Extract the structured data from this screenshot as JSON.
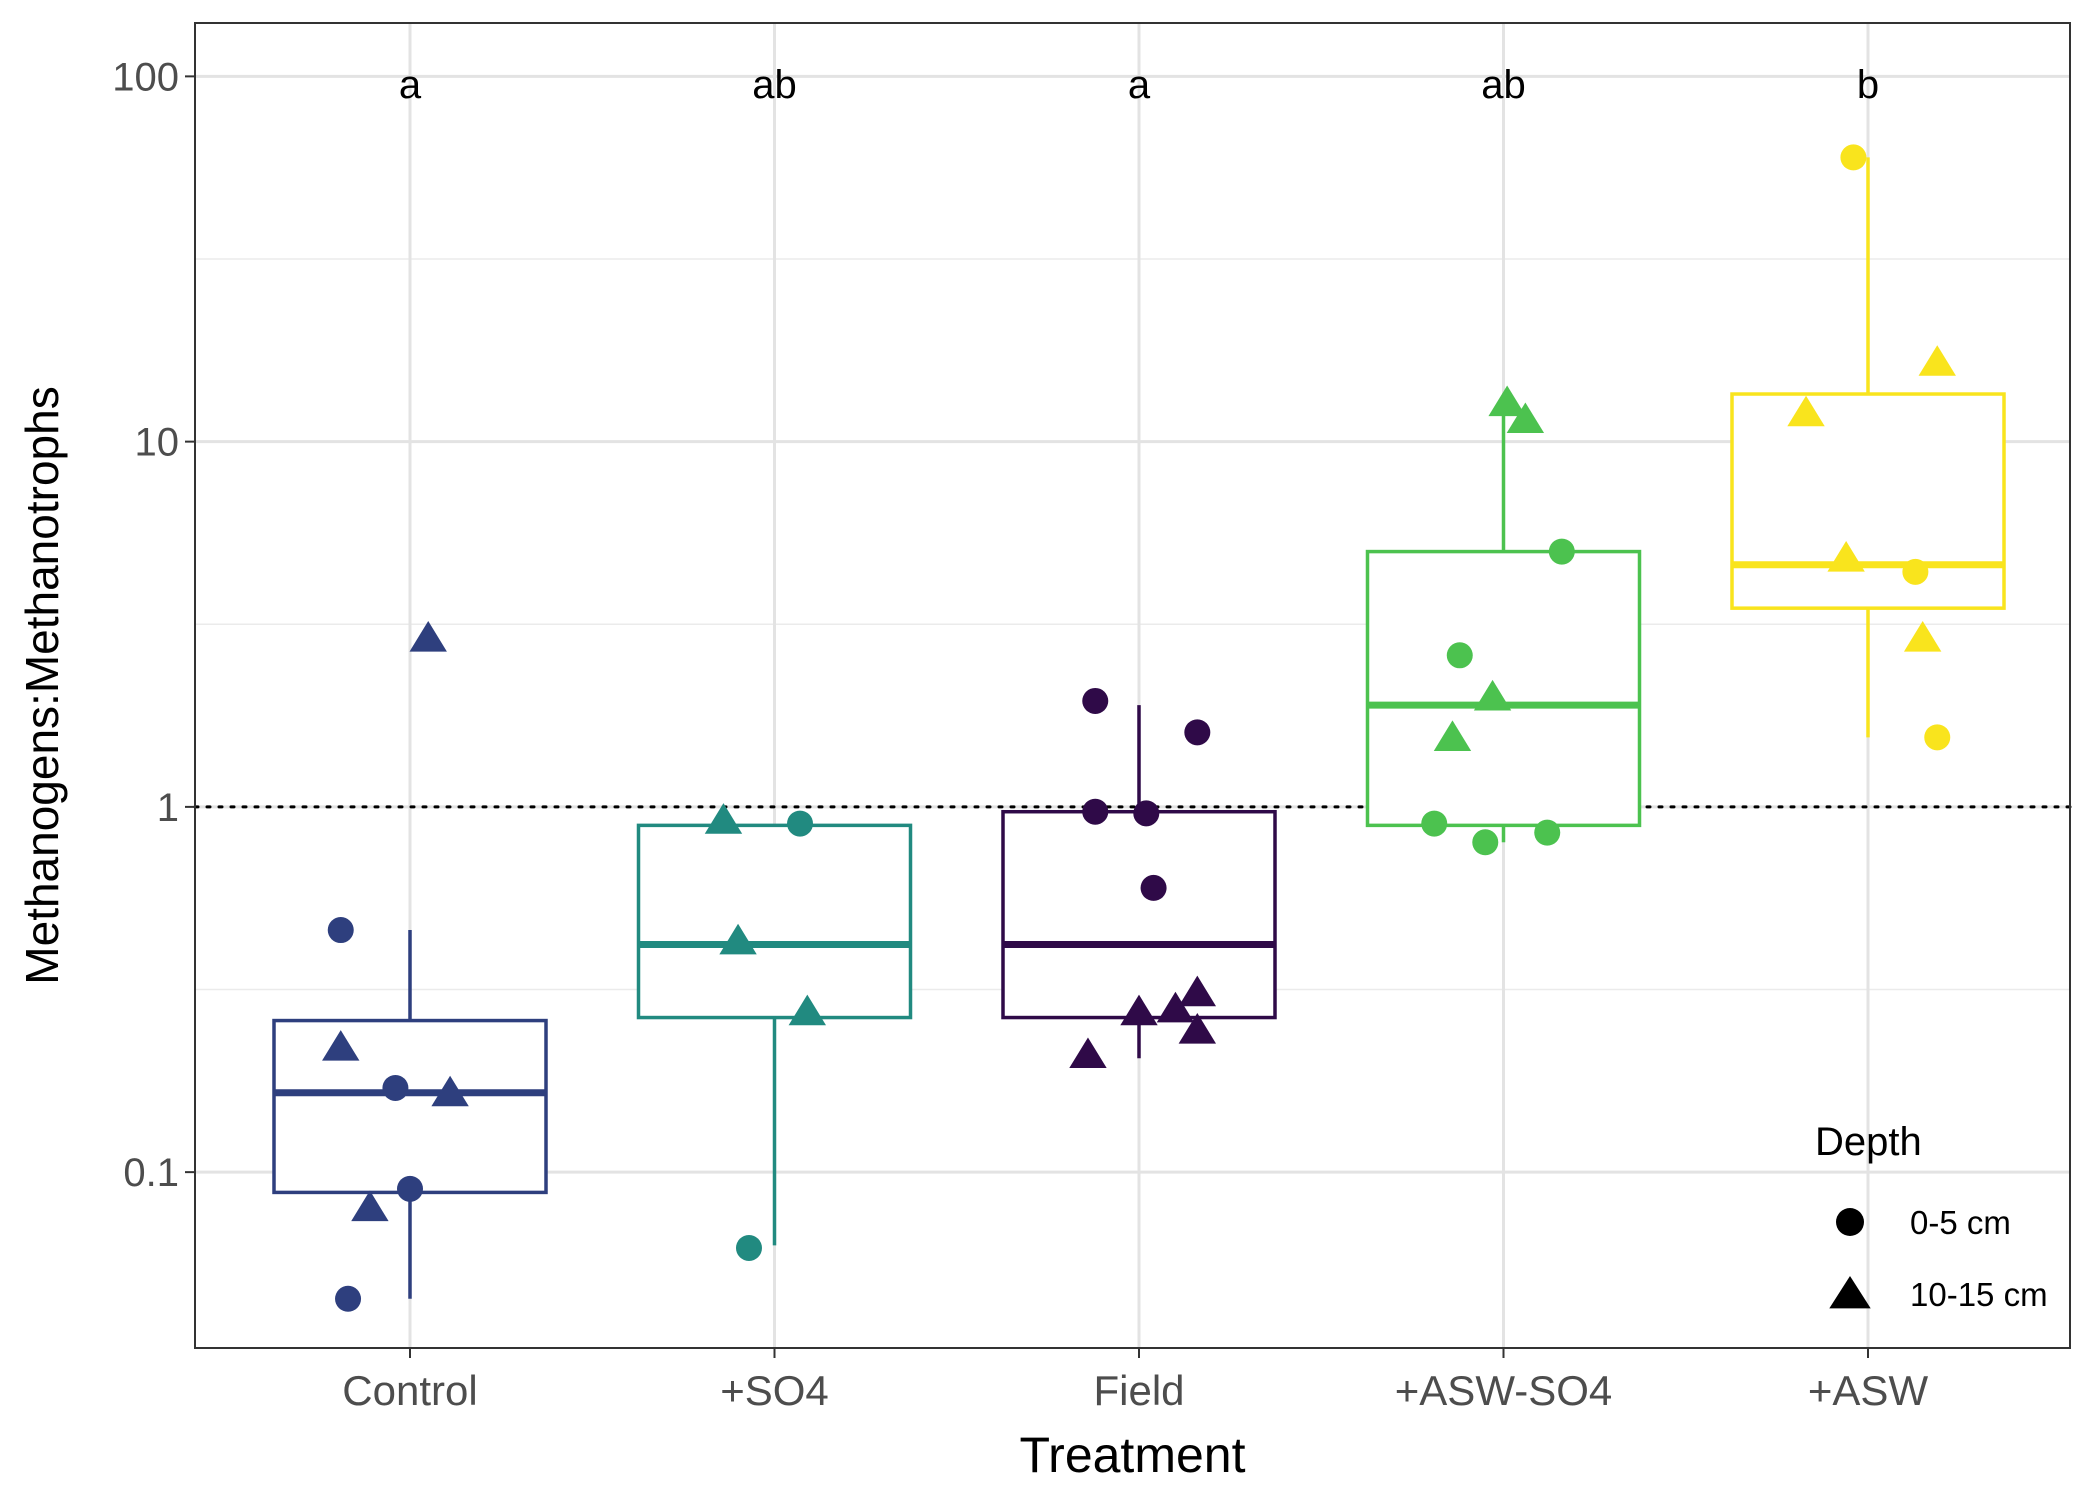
{
  "chart_data": {
    "type": "box",
    "xlabel": "Treatment",
    "ylabel": "Methanogens:Methanotrophs",
    "y_scale": "log10",
    "ylim": [
      0.033,
      140
    ],
    "y_ticks": [
      {
        "value": 0.1,
        "label": "0.1"
      },
      {
        "value": 1,
        "label": "1"
      },
      {
        "value": 10,
        "label": "10"
      },
      {
        "value": 100,
        "label": "100"
      }
    ],
    "reference_line": {
      "y": 1,
      "style": "dotted"
    },
    "grid": true,
    "legend": {
      "title": "Depth",
      "placement": "bottom-right",
      "entries": [
        {
          "label": "0-5 cm",
          "shape": "circle"
        },
        {
          "label": "10-15 cm",
          "shape": "triangle"
        }
      ]
    },
    "groups": [
      {
        "category": "Control",
        "color": "#2e3f7e",
        "letter": "a",
        "box": {
          "q1": 0.088,
          "median": 0.165,
          "q3": 0.26,
          "whisker_low": 0.045,
          "whisker_high": 0.46
        },
        "points": [
          {
            "dx": -0.19,
            "y": 0.46,
            "shape": "circle"
          },
          {
            "dx": -0.17,
            "y": 0.045,
            "shape": "circle"
          },
          {
            "dx": -0.04,
            "y": 0.17,
            "shape": "circle"
          },
          {
            "dx": 0.0,
            "y": 0.09,
            "shape": "circle"
          },
          {
            "dx": -0.19,
            "y": 0.22,
            "shape": "triangle"
          },
          {
            "dx": -0.11,
            "y": 0.08,
            "shape": "triangle"
          },
          {
            "dx": 0.05,
            "y": 2.9,
            "shape": "triangle"
          },
          {
            "dx": 0.11,
            "y": 0.165,
            "shape": "triangle"
          }
        ]
      },
      {
        "category": "+SO4",
        "color": "#218a80",
        "letter": "ab",
        "box": {
          "q1": 0.265,
          "median": 0.42,
          "q3": 0.89,
          "whisker_low": 0.063,
          "whisker_high": 0.89
        },
        "points": [
          {
            "dx": 0.07,
            "y": 0.9,
            "shape": "circle"
          },
          {
            "dx": -0.07,
            "y": 0.062,
            "shape": "circle"
          },
          {
            "dx": -0.14,
            "y": 0.92,
            "shape": "triangle"
          },
          {
            "dx": -0.1,
            "y": 0.43,
            "shape": "triangle"
          },
          {
            "dx": 0.09,
            "y": 0.275,
            "shape": "triangle"
          }
        ]
      },
      {
        "category": "Field",
        "color": "#2f0a48",
        "letter": "a",
        "box": {
          "q1": 0.265,
          "median": 0.42,
          "q3": 0.97,
          "whisker_low": 0.205,
          "whisker_high": 1.9
        },
        "points": [
          {
            "dx": -0.12,
            "y": 1.95,
            "shape": "circle"
          },
          {
            "dx": 0.16,
            "y": 1.6,
            "shape": "circle"
          },
          {
            "dx": -0.12,
            "y": 0.97,
            "shape": "circle"
          },
          {
            "dx": 0.02,
            "y": 0.96,
            "shape": "circle"
          },
          {
            "dx": 0.04,
            "y": 0.6,
            "shape": "circle"
          },
          {
            "dx": -0.14,
            "y": 0.21,
            "shape": "triangle"
          },
          {
            "dx": 0.0,
            "y": 0.275,
            "shape": "triangle"
          },
          {
            "dx": 0.1,
            "y": 0.28,
            "shape": "triangle"
          },
          {
            "dx": 0.16,
            "y": 0.31,
            "shape": "triangle"
          },
          {
            "dx": 0.16,
            "y": 0.245,
            "shape": "triangle"
          }
        ]
      },
      {
        "category": "+ASW-SO4",
        "color": "#4cc24f",
        "letter": "ab",
        "box": {
          "q1": 0.89,
          "median": 1.9,
          "q3": 5.0,
          "whisker_low": 0.8,
          "whisker_high": 12.5
        },
        "points": [
          {
            "dx": 0.16,
            "y": 5.0,
            "shape": "circle"
          },
          {
            "dx": -0.12,
            "y": 2.6,
            "shape": "circle"
          },
          {
            "dx": -0.19,
            "y": 0.9,
            "shape": "circle"
          },
          {
            "dx": -0.05,
            "y": 0.8,
            "shape": "circle"
          },
          {
            "dx": 0.12,
            "y": 0.85,
            "shape": "circle"
          },
          {
            "dx": 0.01,
            "y": 12.8,
            "shape": "triangle"
          },
          {
            "dx": 0.06,
            "y": 11.5,
            "shape": "triangle"
          },
          {
            "dx": -0.14,
            "y": 1.55,
            "shape": "triangle"
          },
          {
            "dx": -0.03,
            "y": 2.0,
            "shape": "triangle"
          }
        ]
      },
      {
        "category": "+ASW",
        "color": "#f9e41d",
        "letter": "b",
        "box": {
          "q1": 3.5,
          "median": 4.6,
          "q3": 13.5,
          "whisker_low": 1.55,
          "whisker_high": 60
        },
        "points": [
          {
            "dx": -0.04,
            "y": 60,
            "shape": "circle"
          },
          {
            "dx": 0.13,
            "y": 4.4,
            "shape": "circle"
          },
          {
            "dx": 0.19,
            "y": 1.55,
            "shape": "circle"
          },
          {
            "dx": -0.17,
            "y": 12.0,
            "shape": "triangle"
          },
          {
            "dx": -0.06,
            "y": 4.8,
            "shape": "triangle"
          },
          {
            "dx": 0.19,
            "y": 16.5,
            "shape": "triangle"
          },
          {
            "dx": 0.15,
            "y": 2.9,
            "shape": "triangle"
          }
        ]
      }
    ]
  }
}
